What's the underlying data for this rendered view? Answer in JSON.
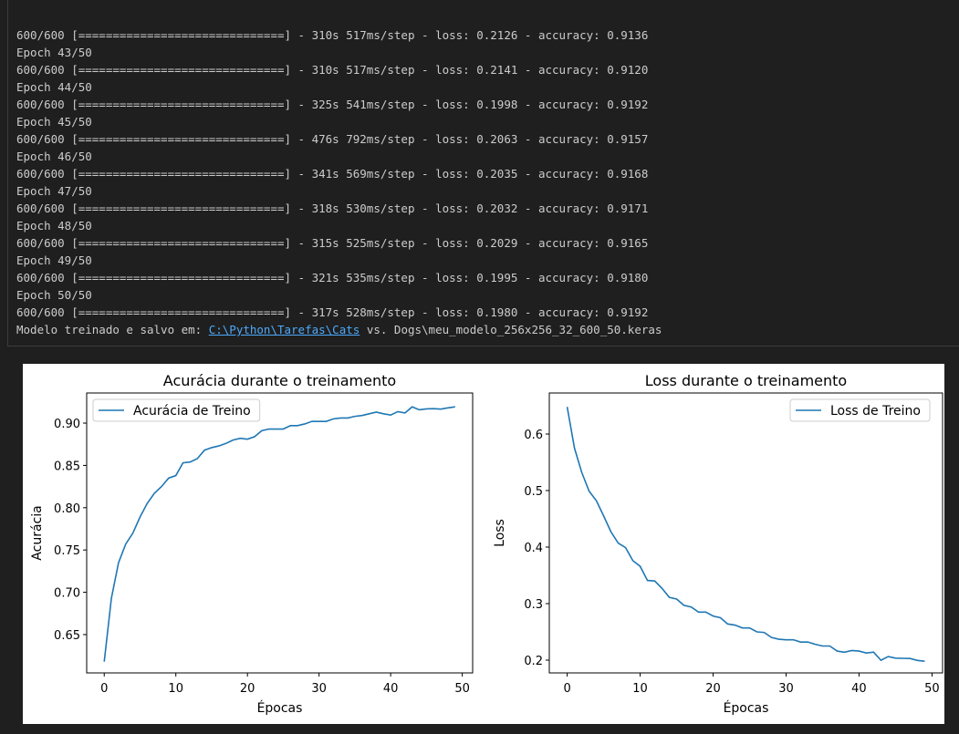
{
  "log": {
    "lines": [
      "600/600 [==============================] - 310s 517ms/step - loss: 0.2126 - accuracy: 0.9136",
      "Epoch 43/50",
      "600/600 [==============================] - 310s 517ms/step - loss: 0.2141 - accuracy: 0.9120",
      "Epoch 44/50",
      "600/600 [==============================] - 325s 541ms/step - loss: 0.1998 - accuracy: 0.9192",
      "Epoch 45/50",
      "600/600 [==============================] - 476s 792ms/step - loss: 0.2063 - accuracy: 0.9157",
      "Epoch 46/50",
      "600/600 [==============================] - 341s 569ms/step - loss: 0.2035 - accuracy: 0.9168",
      "Epoch 47/50",
      "600/600 [==============================] - 318s 530ms/step - loss: 0.2032 - accuracy: 0.9171",
      "Epoch 48/50",
      "600/600 [==============================] - 315s 525ms/step - loss: 0.2029 - accuracy: 0.9165",
      "Epoch 49/50",
      "600/600 [==============================] - 321s 535ms/step - loss: 0.1995 - accuracy: 0.9180",
      "Epoch 50/50",
      "600/600 [==============================] - 317s 528ms/step - loss: 0.1980 - accuracy: 0.9192"
    ],
    "footer": {
      "prefix": "Modelo treinado e salvo em: ",
      "link": "C:\\Python\\Tarefas\\Cats",
      "suffix": " vs. Dogs\\meu_modelo_256x256_32_600_50.keras"
    }
  },
  "chart_data": [
    {
      "type": "line",
      "title": "Acurácia durante o treinamento",
      "xlabel": "Épocas",
      "ylabel": "Acurácia",
      "x": [
        0,
        1,
        2,
        3,
        4,
        5,
        6,
        7,
        8,
        9,
        10,
        11,
        12,
        13,
        14,
        15,
        16,
        17,
        18,
        19,
        20,
        21,
        22,
        23,
        24,
        25,
        26,
        27,
        28,
        29,
        30,
        31,
        32,
        33,
        34,
        35,
        36,
        37,
        38,
        39,
        40,
        41,
        42,
        43,
        44,
        45,
        46,
        47,
        48,
        49
      ],
      "series": [
        {
          "name": "Acurácia de Treino",
          "color": "#1f77b4",
          "values": [
            0.618,
            0.693,
            0.735,
            0.757,
            0.77,
            0.789,
            0.805,
            0.817,
            0.825,
            0.835,
            0.838,
            0.853,
            0.854,
            0.858,
            0.868,
            0.871,
            0.873,
            0.876,
            0.88,
            0.882,
            0.881,
            0.884,
            0.891,
            0.893,
            0.893,
            0.893,
            0.897,
            0.897,
            0.899,
            0.902,
            0.902,
            0.902,
            0.905,
            0.906,
            0.906,
            0.908,
            0.909,
            0.911,
            0.913,
            0.911,
            0.9095,
            0.9136,
            0.912,
            0.9192,
            0.9157,
            0.9168,
            0.9171,
            0.9165,
            0.918,
            0.9192
          ]
        }
      ],
      "xlim": [
        -2.45,
        51.45
      ],
      "ylim": [
        0.6047,
        0.9356
      ],
      "xticks": [
        0,
        10,
        20,
        30,
        40,
        50
      ],
      "yticks": [
        0.65,
        {
          "value": 0.7,
          "label": "0.70"
        },
        0.75,
        {
          "value": 0.8,
          "label": "0.80"
        },
        0.85,
        {
          "value": 0.9,
          "label": "0.90"
        }
      ],
      "legend": "upper left",
      "grid": false
    },
    {
      "type": "line",
      "title": "Loss durante o treinamento",
      "xlabel": "Épocas",
      "ylabel": "Loss",
      "x": [
        0,
        1,
        2,
        3,
        4,
        5,
        6,
        7,
        8,
        9,
        10,
        11,
        12,
        13,
        14,
        15,
        16,
        17,
        18,
        19,
        20,
        21,
        22,
        23,
        24,
        25,
        26,
        27,
        28,
        29,
        30,
        31,
        32,
        33,
        34,
        35,
        36,
        37,
        38,
        39,
        40,
        41,
        42,
        43,
        44,
        45,
        46,
        47,
        48,
        49
      ],
      "series": [
        {
          "name": "Loss de Treino",
          "color": "#1f77b4",
          "values": [
            0.648,
            0.575,
            0.532,
            0.499,
            0.482,
            0.455,
            0.427,
            0.407,
            0.399,
            0.376,
            0.366,
            0.341,
            0.34,
            0.327,
            0.311,
            0.308,
            0.297,
            0.294,
            0.285,
            0.285,
            0.278,
            0.275,
            0.264,
            0.262,
            0.257,
            0.257,
            0.25,
            0.249,
            0.24,
            0.237,
            0.236,
            0.236,
            0.232,
            0.232,
            0.228,
            0.225,
            0.225,
            0.216,
            0.214,
            0.217,
            0.216,
            0.2126,
            0.2141,
            0.1998,
            0.2063,
            0.2035,
            0.2032,
            0.2029,
            0.1995,
            0.198
          ]
        }
      ],
      "xlim": [
        -2.45,
        51.45
      ],
      "ylim": [
        0.1774,
        0.6726
      ],
      "xticks": [
        0,
        10,
        20,
        30,
        40,
        50
      ],
      "yticks": [
        0.2,
        0.3,
        0.4,
        0.5,
        0.6
      ],
      "legend": "upper right",
      "grid": false
    }
  ]
}
